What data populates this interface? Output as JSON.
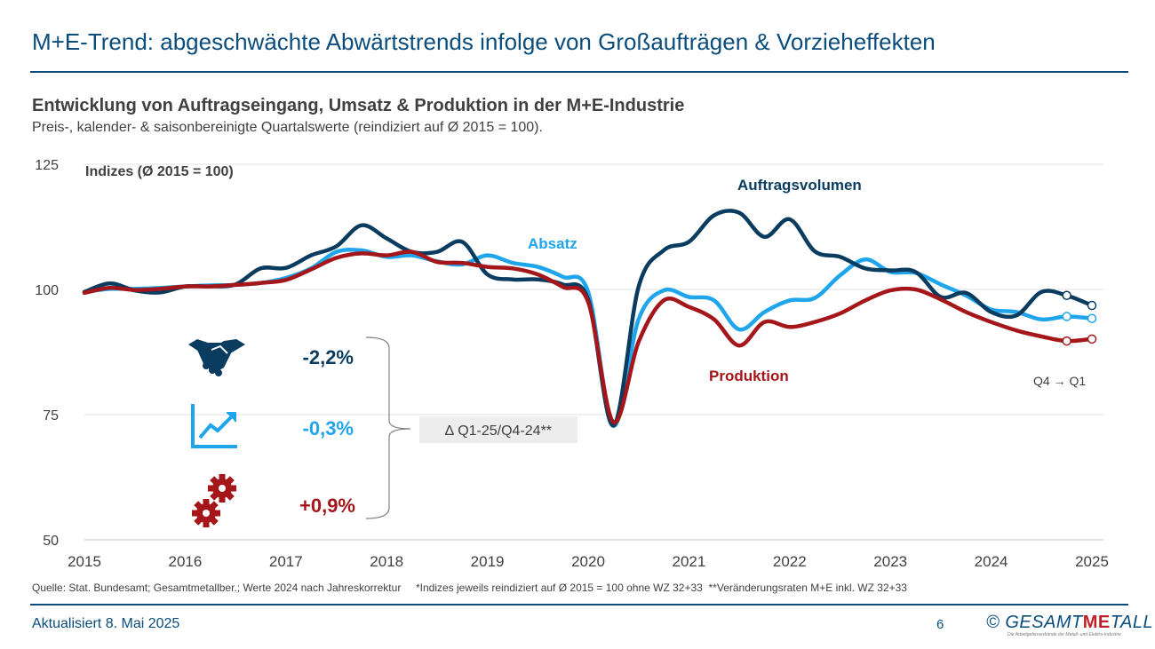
{
  "header": {
    "title": "M+E-Trend: abgeschwächte Abwärtstrends infolge von Großaufträgen & Vorzieheffekten"
  },
  "colors": {
    "auftrag": "#0a3c5f",
    "absatz": "#1ea5ec",
    "produktion": "#a4161a",
    "accent": "#0a4d7d",
    "grid": "#e0e0e0"
  },
  "chart_data": {
    "type": "line",
    "title": "Entwicklung von Auftragseingang, Umsatz & Produktion in der M+E-Industrie",
    "subtitle": "Preis-, kalender- & saisonbereinigte Quartalswerte (reindiziert auf Ø 2015 = 100).",
    "ylabel": "Indizes (Ø 2015 = 100)",
    "ylim": [
      50,
      125
    ],
    "xlim": [
      2015,
      2025.25
    ],
    "yticks": [
      "125",
      "100",
      "75",
      "50"
    ],
    "xticks": [
      "2015",
      "2016",
      "2017",
      "2018",
      "2019",
      "2020",
      "2021",
      "2022",
      "2023",
      "2024",
      "2025"
    ],
    "x": [
      2015.0,
      2015.25,
      2015.5,
      2015.75,
      2016.0,
      2016.25,
      2016.5,
      2016.75,
      2017.0,
      2017.25,
      2017.5,
      2017.75,
      2018.0,
      2018.25,
      2018.5,
      2018.75,
      2019.0,
      2019.25,
      2019.5,
      2019.75,
      2020.0,
      2020.25,
      2020.5,
      2020.75,
      2021.0,
      2021.25,
      2021.5,
      2021.75,
      2022.0,
      2022.25,
      2022.5,
      2022.75,
      2023.0,
      2023.25,
      2023.5,
      2023.75,
      2024.0,
      2024.25,
      2024.5,
      2024.75,
      2025.0
    ],
    "series": [
      {
        "name": "Auftragsvolumen",
        "values": [
          99.5,
          101.2,
          99.8,
          99.4,
          100.6,
          100.6,
          101.0,
          104.2,
          104.3,
          106.8,
          108.6,
          112.8,
          110.2,
          107.5,
          107.5,
          109.5,
          103.0,
          102.0,
          102.0,
          101.0,
          98.0,
          72.8,
          100.5,
          107.8,
          109.5,
          114.8,
          115.3,
          110.5,
          114.0,
          107.6,
          106.5,
          104.2,
          103.8,
          103.5,
          98.5,
          99.3,
          95.5,
          94.8,
          99.5,
          98.8,
          96.8
        ]
      },
      {
        "name": "Absatz",
        "values": [
          99.5,
          100.1,
          100.1,
          100.3,
          100.6,
          100.8,
          100.9,
          101.3,
          102.3,
          104.2,
          107.5,
          107.8,
          106.5,
          106.8,
          105.6,
          105.0,
          106.8,
          105.3,
          104.5,
          102.5,
          99.5,
          72.8,
          94.0,
          99.8,
          98.5,
          97.8,
          92.0,
          95.5,
          97.8,
          98.3,
          102.8,
          106.0,
          103.5,
          103.3,
          101.0,
          98.8,
          96.0,
          95.5,
          94.0,
          94.6,
          94.2
        ]
      },
      {
        "name": "Produktion",
        "values": [
          99.3,
          100.3,
          99.9,
          100.1,
          100.6,
          100.6,
          100.9,
          101.3,
          101.9,
          104.0,
          106.3,
          107.2,
          106.8,
          107.5,
          105.5,
          105.3,
          104.5,
          104.2,
          103.0,
          100.5,
          97.5,
          73.5,
          89.5,
          97.8,
          96.5,
          94.0,
          88.8,
          93.5,
          92.5,
          93.5,
          95.2,
          97.8,
          99.8,
          100.0,
          98.0,
          95.5,
          93.5,
          91.8,
          90.6,
          89.7,
          90.1
        ]
      }
    ],
    "series_labels": {
      "auftrag": "Auftragsvolumen",
      "absatz": "Absatz",
      "produktion": "Produktion"
    },
    "annotation": "Q4 → Q1",
    "changes_label": "∆ Q1-25/Q4-24**",
    "changes": [
      {
        "name": "Auftragsvolumen",
        "value": "-2,2%",
        "icon": "handshake-icon"
      },
      {
        "name": "Absatz",
        "value": "-0,3%",
        "icon": "growth-chart-icon"
      },
      {
        "name": "Produktion",
        "value": "+0,9%",
        "icon": "gears-icon"
      }
    ]
  },
  "footer": {
    "source": "Quelle: Stat. Bundesamt; Gesamtmetallber.; Werte 2024 nach Jahreskorrektur     *Indizes jeweils reindiziert auf Ø 2015 = 100 ohne WZ 32+33  **Veränderungsraten M+E inkl. WZ 32+33",
    "updated": "Aktualisiert 8. Mai 2025",
    "page": "6",
    "logo_copyright": "©",
    "logo_pre": "GESAMT",
    "logo_me": "ME",
    "logo_post": "TALL",
    "logo_tagline": "Die Arbeitgeberverbände der Metall- und Elektro-Industrie"
  }
}
